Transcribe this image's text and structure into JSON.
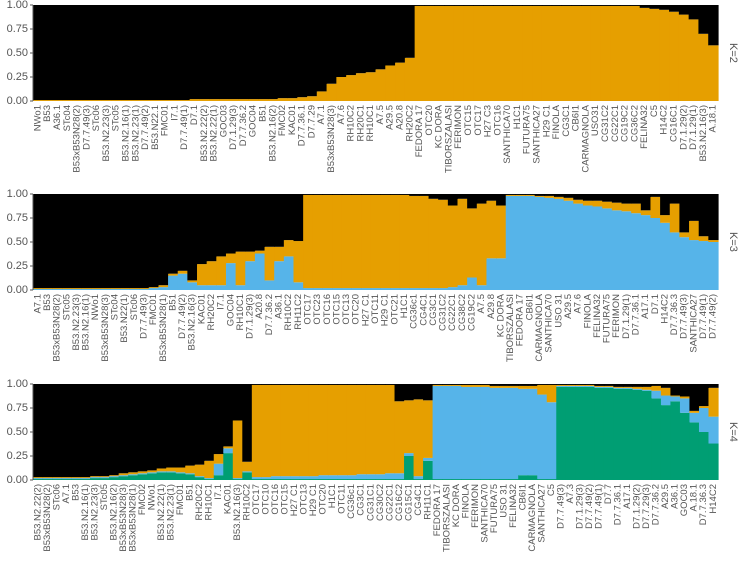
{
  "chart_data": [
    {
      "type": "bar",
      "stacked": true,
      "annotation": "K=2",
      "categories": [
        "NWo1",
        "B53",
        "A36.1",
        "STc04",
        "B53xB53N28(2)",
        "D7.7.49(3)",
        "STc06",
        "B53.N2.23(3)",
        "STc05",
        "B53.N2.16(1)",
        "B53.N2.23(1)",
        "D7.7.49(2)",
        "B53.N22.1",
        "FMC01",
        "I7.1",
        "D7.7.49(1)",
        "D7.1",
        "B53.N2.22(2)",
        "B53.N2.22(1)",
        "GOC03",
        "D7.1.29(3)",
        "D7.7.36.2",
        "GOC04",
        "B51",
        "B53.N2.16(2)",
        "FMC02",
        "KAC01",
        "D7.7.36.1",
        "D7.7.29",
        "A7.1",
        "B53xB53N28(3)",
        "A7.6",
        "RH10C2",
        "RH20C1",
        "RH10C1",
        "A7.5",
        "A29.5",
        "A20.8",
        "RH20C2",
        "FEDORA 17",
        "OTC20",
        "KC DORA",
        "TIBORSZALASI",
        "FERIMON",
        "OTC15",
        "OTC17",
        "H27 C3",
        "OTC16",
        "SANTHICA70",
        "H1C1",
        "FUTURA75",
        "SANTHICA27",
        "H29 C1",
        "FINOLA",
        "CG3C1",
        "CB6I1",
        "CARMAGNOLA",
        "USO31",
        "CG31C2",
        "CG22C1",
        "CG19C2",
        "CG36C2",
        "FELINA32",
        "C5",
        "H14C2",
        "CG16C1",
        "D7.1.29(2)",
        "D7.1.29(1)",
        "B53.N2.16(3)",
        "A.18.1"
      ],
      "series": [
        {
          "color": "#e69f00",
          "values": [
            0.01,
            0.01,
            0.01,
            0.01,
            0.01,
            0.01,
            0.01,
            0.01,
            0.01,
            0.01,
            0.01,
            0.01,
            0.01,
            0.01,
            0.01,
            0.01,
            0.02,
            0.02,
            0.02,
            0.02,
            0.02,
            0.02,
            0.02,
            0.02,
            0.02,
            0.03,
            0.03,
            0.04,
            0.05,
            0.1,
            0.18,
            0.25,
            0.27,
            0.29,
            0.3,
            0.33,
            0.37,
            0.4,
            0.45,
            0.99,
            0.99,
            0.99,
            0.99,
            0.99,
            0.99,
            0.99,
            0.99,
            0.99,
            0.99,
            0.99,
            0.99,
            0.99,
            0.99,
            0.99,
            0.99,
            0.99,
            0.99,
            0.99,
            0.99,
            0.99,
            0.99,
            0.99,
            0.97,
            0.96,
            0.95,
            0.93,
            0.9,
            0.85,
            0.7,
            0.58
          ]
        },
        {
          "color": "#000000",
          "values": [
            0.99,
            0.99,
            0.99,
            0.99,
            0.99,
            0.99,
            0.99,
            0.99,
            0.99,
            0.99,
            0.99,
            0.99,
            0.99,
            0.99,
            0.99,
            0.99,
            0.98,
            0.98,
            0.98,
            0.98,
            0.98,
            0.98,
            0.98,
            0.98,
            0.98,
            0.97,
            0.97,
            0.96,
            0.95,
            0.9,
            0.82,
            0.75,
            0.73,
            0.71,
            0.7,
            0.67,
            0.63,
            0.6,
            0.55,
            0.01,
            0.01,
            0.01,
            0.01,
            0.01,
            0.01,
            0.01,
            0.01,
            0.01,
            0.01,
            0.01,
            0.01,
            0.01,
            0.01,
            0.01,
            0.01,
            0.01,
            0.01,
            0.01,
            0.01,
            0.01,
            0.01,
            0.01,
            0.03,
            0.04,
            0.05,
            0.07,
            0.1,
            0.15,
            0.3,
            0.42
          ]
        }
      ],
      "ylim": [
        0,
        1
      ],
      "yticks": [
        {
          "value": 0,
          "label": "0.00"
        },
        {
          "value": 0.25,
          "label": "0.25"
        },
        {
          "value": 0.5,
          "label": "0.50"
        },
        {
          "value": 0.75,
          "label": "0.75"
        },
        {
          "value": 1,
          "label": "1.00"
        }
      ]
    },
    {
      "type": "bar",
      "stacked": true,
      "annotation": "K=3",
      "categories": [
        "A7.1",
        "B53",
        "B53xB53N28(2)",
        "STc05",
        "B53.N2.23(3)",
        "B53.N2.16(1)",
        "NWo1",
        "B53xB53N28(3)",
        "STc04",
        "B53.N22(1)",
        "STc06",
        "D7.7.49(3)",
        "FMC01",
        "B53xB53N28(1)",
        "B51",
        "D7.7.49(2)",
        "B53.N2.16(3)",
        "KAC01",
        "RH20C2",
        "I7.1",
        "GOC04",
        "RH10C1",
        "D7.1.29(3)",
        "A20.8",
        "D7.7.36.2",
        "A36.1",
        "RH10C2",
        "RH11C2",
        "OTC17",
        "OTC23",
        "OTC16",
        "OTC15",
        "OTC13",
        "OTC20",
        "H27 C1",
        "OTC11",
        "H29 C1",
        "OTC21",
        "H1C1",
        "CG36c1",
        "CG4C1",
        "CG3C1",
        "CG31C2",
        "CG22C1",
        "CG38C2",
        "CG19C2",
        "A7.5",
        "A29.8",
        "KC DORA",
        "TIBORSZALASI",
        "FEDORA 17",
        "CB6I1",
        "CARMAGNOLA",
        "SANTHICA70",
        "USO 31",
        "A29.5",
        "A7.6",
        "FINOLA",
        "FELINA32",
        "FUTURA75",
        "FERIMON",
        "D7.1.29(1)",
        "D7.7.36.1",
        "A17.1",
        "D7.1",
        "H14C2",
        "D7.7.36.3",
        "D7.7.49(3)",
        "SANTHICA27",
        "D7.7.49(1)",
        "D7.7.49(2)"
      ],
      "series": [
        {
          "color": "#56b4e9",
          "values": [
            0.01,
            0.01,
            0.01,
            0.01,
            0.01,
            0.01,
            0.01,
            0.01,
            0.01,
            0.01,
            0.01,
            0.01,
            0.02,
            0.03,
            0.15,
            0.17,
            0.08,
            0.05,
            0.05,
            0.05,
            0.28,
            0.05,
            0.3,
            0.38,
            0.1,
            0.3,
            0.35,
            0.08,
            0.02,
            0.02,
            0.02,
            0.02,
            0.02,
            0.02,
            0.02,
            0.02,
            0.02,
            0.02,
            0.02,
            0.02,
            0.02,
            0.02,
            0.02,
            0.03,
            0.05,
            0.13,
            0.05,
            0.33,
            0.33,
            0.98,
            0.98,
            0.98,
            0.97,
            0.96,
            0.95,
            0.93,
            0.9,
            0.88,
            0.87,
            0.85,
            0.83,
            0.82,
            0.8,
            0.78,
            0.75,
            0.7,
            0.6,
            0.55,
            0.52,
            0.51,
            0.5
          ]
        },
        {
          "color": "#e69f00",
          "values": [
            0.01,
            0.01,
            0.01,
            0.01,
            0.01,
            0.01,
            0.01,
            0.01,
            0.01,
            0.01,
            0.01,
            0.01,
            0.01,
            0.02,
            0.02,
            0.03,
            0.02,
            0.22,
            0.25,
            0.3,
            0.1,
            0.35,
            0.1,
            0.03,
            0.35,
            0.15,
            0.17,
            0.43,
            0.97,
            0.97,
            0.97,
            0.97,
            0.97,
            0.97,
            0.97,
            0.97,
            0.97,
            0.97,
            0.97,
            0.96,
            0.96,
            0.93,
            0.92,
            0.85,
            0.9,
            0.72,
            0.85,
            0.6,
            0.55,
            0.01,
            0.01,
            0.01,
            0.01,
            0.02,
            0.02,
            0.03,
            0.04,
            0.05,
            0.06,
            0.07,
            0.08,
            0.08,
            0.1,
            0.05,
            0.22,
            0.08,
            0.3,
            0.05,
            0.2,
            0.05,
            0.02
          ]
        },
        {
          "color": "#000000",
          "values": [
            0.98,
            0.98,
            0.98,
            0.98,
            0.98,
            0.98,
            0.98,
            0.98,
            0.98,
            0.98,
            0.98,
            0.98,
            0.97,
            0.95,
            0.83,
            0.8,
            0.9,
            0.73,
            0.7,
            0.65,
            0.62,
            0.6,
            0.6,
            0.59,
            0.55,
            0.55,
            0.48,
            0.49,
            0.01,
            0.01,
            0.01,
            0.01,
            0.01,
            0.01,
            0.01,
            0.01,
            0.01,
            0.01,
            0.01,
            0.02,
            0.02,
            0.05,
            0.06,
            0.12,
            0.05,
            0.15,
            0.1,
            0.07,
            0.12,
            0.01,
            0.01,
            0.01,
            0.02,
            0.02,
            0.03,
            0.04,
            0.06,
            0.07,
            0.07,
            0.08,
            0.09,
            0.1,
            0.1,
            0.17,
            0.03,
            0.22,
            0.1,
            0.4,
            0.28,
            0.44,
            0.48
          ]
        }
      ],
      "ylim": [
        0,
        1
      ],
      "yticks": [
        {
          "value": 0,
          "label": "0.00"
        },
        {
          "value": 0.25,
          "label": "0.25"
        },
        {
          "value": 0.5,
          "label": "0.50"
        },
        {
          "value": 0.75,
          "label": "0.75"
        },
        {
          "value": 1,
          "label": "1.00"
        }
      ]
    },
    {
      "type": "bar",
      "stacked": true,
      "annotation": "K=4",
      "categories": [
        "B53.N2.22(2)",
        "B53xB53N28(2)",
        "STc06",
        "A7.1",
        "B53",
        "B53.N2.16(1)",
        "B53.N2.23(3)",
        "STc05",
        "B53.N2.16(2)",
        "B53xB53N28(3)",
        "B53xB53N28(1)",
        "FMC02",
        "NWo1",
        "B53.N2.22(1)",
        "B53.N2.23(1)",
        "FMC01",
        "B51",
        "RH20C2",
        "RH10C1",
        "I7.1",
        "KAC01",
        "B53.N2.16(3)",
        "RH10C2",
        "OTC17",
        "OTC10",
        "OTC16",
        "OTC15",
        "H27 C1",
        "OTC13",
        "H29 C1",
        "OTC20",
        "H1C1",
        "OTC11",
        "CG36c1",
        "CG3C1",
        "CG31C1",
        "CG30C2",
        "CG22C1",
        "CG16C2",
        "CG15C1",
        "CG4C1",
        "RH11C1",
        "FEDORA 17",
        "TIBORSZALASI",
        "KC DORA",
        "FINOLA",
        "FERIMON",
        "SANTHICA70",
        "FUTURA75",
        "USO 31",
        "FELINA32",
        "CB6I1",
        "CARMAGNOLA",
        "SANTHICA27",
        "C5",
        "D7.7.49(3)",
        "A7.3",
        "D7.1.29(3)",
        "D7.7.49(2)",
        "D7.7.49(1)",
        "D7.7",
        "D7.7.36.1",
        "A17.1",
        "D7.1.29(2)",
        "D7.7.29(3)",
        "D7.7.36.2",
        "A29.5",
        "A36.1",
        "GOC03",
        "A.18.1",
        "D7.7.36.3",
        "H14C2"
      ],
      "series": [
        {
          "color": "#009e73",
          "values": [
            0.01,
            0.01,
            0.01,
            0.01,
            0.01,
            0.01,
            0.02,
            0.02,
            0.03,
            0.04,
            0.05,
            0.06,
            0.07,
            0.08,
            0.08,
            0.07,
            0.06,
            0.03,
            0.01,
            0.05,
            0.28,
            0.01,
            0.08,
            0.01,
            0.01,
            0.01,
            0.01,
            0.01,
            0.01,
            0.01,
            0.01,
            0.01,
            0.01,
            0.01,
            0.01,
            0.01,
            0.01,
            0.01,
            0.01,
            0.25,
            0.01,
            0.2,
            0.01,
            0.01,
            0.01,
            0.01,
            0.01,
            0.01,
            0.01,
            0.01,
            0.01,
            0.05,
            0.05,
            0.01,
            0.01,
            0.97,
            0.97,
            0.97,
            0.97,
            0.96,
            0.96,
            0.95,
            0.95,
            0.94,
            0.93,
            0.85,
            0.78,
            0.82,
            0.7,
            0.6,
            0.5,
            0.38
          ]
        },
        {
          "color": "#56b4e9",
          "values": [
            0.01,
            0.01,
            0.01,
            0.01,
            0.01,
            0.01,
            0.01,
            0.01,
            0.01,
            0.01,
            0.01,
            0.01,
            0.01,
            0.01,
            0.01,
            0.01,
            0.01,
            0.01,
            0.01,
            0.12,
            0.05,
            0.01,
            0.01,
            0.02,
            0.02,
            0.03,
            0.03,
            0.03,
            0.03,
            0.03,
            0.04,
            0.04,
            0.04,
            0.04,
            0.05,
            0.05,
            0.05,
            0.06,
            0.06,
            0.03,
            0.03,
            0.03,
            0.97,
            0.97,
            0.97,
            0.96,
            0.96,
            0.96,
            0.95,
            0.95,
            0.95,
            0.9,
            0.9,
            0.88,
            0.8,
            0.01,
            0.01,
            0.01,
            0.01,
            0.01,
            0.01,
            0.01,
            0.01,
            0.01,
            0.01,
            0.08,
            0.1,
            0.05,
            0.15,
            0.1,
            0.25,
            0.28
          ]
        },
        {
          "color": "#e69f00",
          "values": [
            0.01,
            0.01,
            0.01,
            0.01,
            0.01,
            0.01,
            0.01,
            0.01,
            0.01,
            0.02,
            0.02,
            0.02,
            0.02,
            0.03,
            0.04,
            0.05,
            0.08,
            0.12,
            0.18,
            0.1,
            0.02,
            0.6,
            0.1,
            0.96,
            0.96,
            0.95,
            0.95,
            0.95,
            0.95,
            0.95,
            0.94,
            0.94,
            0.94,
            0.94,
            0.93,
            0.93,
            0.93,
            0.92,
            0.75,
            0.55,
            0.8,
            0.6,
            0.01,
            0.01,
            0.01,
            0.02,
            0.02,
            0.02,
            0.02,
            0.02,
            0.02,
            0.03,
            0.03,
            0.1,
            0.18,
            0.01,
            0.01,
            0.01,
            0.01,
            0.01,
            0.01,
            0.01,
            0.01,
            0.02,
            0.03,
            0.05,
            0.08,
            0.01,
            0.02,
            0.02,
            0.02,
            0.3
          ]
        },
        {
          "color": "#000000",
          "values": [
            0.97,
            0.97,
            0.97,
            0.97,
            0.97,
            0.97,
            0.96,
            0.96,
            0.95,
            0.93,
            0.92,
            0.91,
            0.9,
            0.88,
            0.87,
            0.87,
            0.85,
            0.84,
            0.8,
            0.73,
            0.65,
            0.38,
            0.81,
            0.01,
            0.01,
            0.01,
            0.01,
            0.01,
            0.01,
            0.01,
            0.01,
            0.01,
            0.01,
            0.01,
            0.01,
            0.01,
            0.01,
            0.01,
            0.18,
            0.17,
            0.16,
            0.17,
            0.01,
            0.01,
            0.01,
            0.01,
            0.01,
            0.01,
            0.02,
            0.02,
            0.02,
            0.02,
            0.02,
            0.01,
            0.01,
            0.01,
            0.01,
            0.01,
            0.01,
            0.02,
            0.02,
            0.03,
            0.03,
            0.03,
            0.03,
            0.02,
            0.04,
            0.12,
            0.13,
            0.28,
            0.23,
            0.04
          ]
        }
      ],
      "ylim": [
        0,
        1
      ],
      "yticks": [
        {
          "value": 0,
          "label": "0.00"
        },
        {
          "value": 0.25,
          "label": "0.25"
        },
        {
          "value": 0.5,
          "label": "0.50"
        },
        {
          "value": 0.75,
          "label": "0.75"
        },
        {
          "value": 1,
          "label": "1.00"
        }
      ]
    }
  ]
}
